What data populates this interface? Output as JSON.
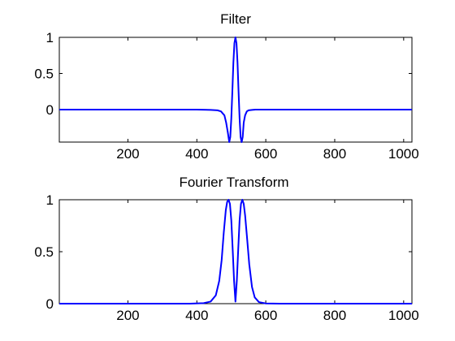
{
  "chart_data": [
    {
      "type": "line",
      "title": "Filter",
      "xlabel": "",
      "ylabel": "",
      "xlim": [
        1,
        1024
      ],
      "ylim": [
        -0.45,
        1
      ],
      "x_ticks": [
        200,
        400,
        600,
        800,
        1000
      ],
      "y_ticks": [
        0,
        0.5,
        1
      ],
      "x_tick_labels": [
        "200",
        "400",
        "600",
        "800",
        "1000"
      ],
      "y_tick_labels": [
        "0",
        "0.5",
        "1"
      ],
      "grid": false,
      "line_color": "#0000ff",
      "series": [
        {
          "name": "",
          "x": [
            1,
            400,
            440,
            460,
            470,
            480,
            485,
            490,
            494,
            497,
            500,
            503,
            506,
            509,
            512,
            515,
            518,
            521,
            524,
            527,
            530,
            533,
            536,
            540,
            545,
            550,
            560,
            570,
            590,
            650,
            1024
          ],
          "y": [
            0,
            0,
            -0.005,
            -0.01,
            -0.025,
            -0.08,
            -0.18,
            -0.32,
            -0.45,
            -0.38,
            -0.12,
            0.25,
            0.65,
            0.92,
            1.0,
            0.92,
            0.65,
            0.25,
            -0.12,
            -0.38,
            -0.45,
            -0.38,
            -0.18,
            -0.08,
            -0.025,
            -0.01,
            -0.005,
            0,
            0,
            0,
            0
          ]
        }
      ]
    },
    {
      "type": "line",
      "title": "Fourier Transform",
      "xlabel": "",
      "ylabel": "",
      "xlim": [
        1,
        1024
      ],
      "ylim": [
        0,
        1
      ],
      "x_ticks": [
        200,
        400,
        600,
        800,
        1000
      ],
      "y_ticks": [
        0,
        0.5,
        1
      ],
      "x_tick_labels": [
        "200",
        "400",
        "600",
        "800",
        "1000"
      ],
      "y_tick_labels": [
        "0",
        "0.5",
        "1"
      ],
      "grid": false,
      "line_color": "#0000ff",
      "series": [
        {
          "name": "",
          "x": [
            1,
            380,
            420,
            440,
            455,
            465,
            472,
            478,
            484,
            488,
            492,
            496,
            500,
            504,
            508,
            512,
            516,
            520,
            524,
            528,
            532,
            536,
            540,
            546,
            552,
            560,
            568,
            580,
            600,
            640,
            1024
          ],
          "y": [
            0,
            0,
            0.005,
            0.02,
            0.08,
            0.22,
            0.42,
            0.68,
            0.9,
            0.98,
            1.0,
            0.96,
            0.8,
            0.52,
            0.22,
            0.02,
            0.22,
            0.52,
            0.8,
            0.96,
            1.0,
            0.96,
            0.85,
            0.62,
            0.38,
            0.16,
            0.06,
            0.015,
            0.002,
            0,
            0
          ]
        }
      ]
    }
  ]
}
